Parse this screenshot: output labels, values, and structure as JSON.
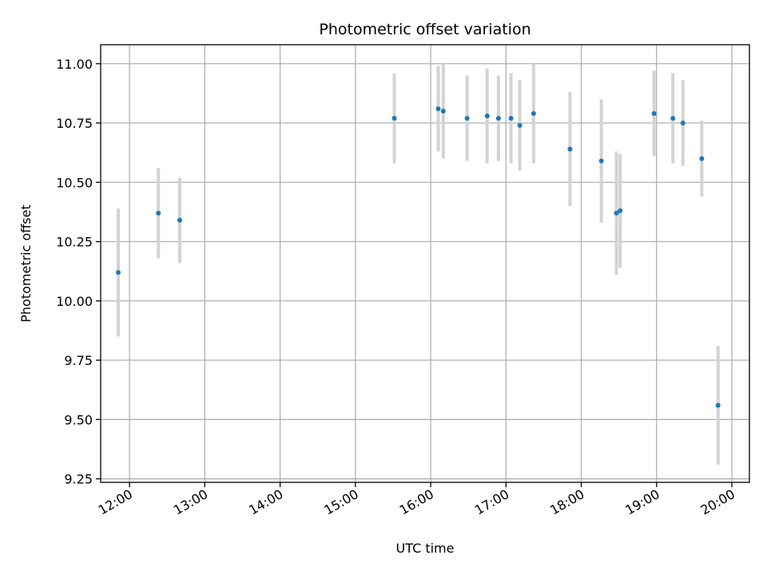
{
  "chart_data": {
    "type": "scatter",
    "title": "Photometric offset variation",
    "xlabel": "UTC time",
    "ylabel": "Photometric offset",
    "grid": true,
    "xlim": [
      "11:37",
      "20:14"
    ],
    "ylim": [
      9.235,
      11.08
    ],
    "x_ticks": [
      "12:00",
      "13:00",
      "14:00",
      "15:00",
      "16:00",
      "17:00",
      "18:00",
      "19:00",
      "20:00"
    ],
    "y_ticks": [
      "9.25",
      "9.50",
      "9.75",
      "10.00",
      "10.25",
      "10.50",
      "10.75",
      "11.00"
    ],
    "colors": {
      "marker": "#1f77b4",
      "errorbar": "#d3d3d3",
      "grid": "#b0b0b0"
    },
    "points": [
      {
        "time": "11:51",
        "y": 10.12,
        "err": 0.27
      },
      {
        "time": "12:23",
        "y": 10.37,
        "err": 0.19
      },
      {
        "time": "12:40",
        "y": 10.34,
        "err": 0.18
      },
      {
        "time": "15:31",
        "y": 10.77,
        "err": 0.19
      },
      {
        "time": "16:06",
        "y": 10.81,
        "err": 0.18
      },
      {
        "time": "16:10",
        "y": 10.8,
        "err": 0.2
      },
      {
        "time": "16:29",
        "y": 10.77,
        "err": 0.18
      },
      {
        "time": "16:45",
        "y": 10.78,
        "err": 0.2
      },
      {
        "time": "16:54",
        "y": 10.77,
        "err": 0.18
      },
      {
        "time": "17:04",
        "y": 10.77,
        "err": 0.19
      },
      {
        "time": "17:11",
        "y": 10.74,
        "err": 0.19
      },
      {
        "time": "17:22",
        "y": 10.79,
        "err": 0.21
      },
      {
        "time": "17:51",
        "y": 10.64,
        "err": 0.24
      },
      {
        "time": "18:16",
        "y": 10.59,
        "err": 0.26
      },
      {
        "time": "18:28",
        "y": 10.37,
        "err": 0.26
      },
      {
        "time": "18:31",
        "y": 10.38,
        "err": 0.24
      },
      {
        "time": "18:58",
        "y": 10.79,
        "err": 0.18
      },
      {
        "time": "19:13",
        "y": 10.77,
        "err": 0.19
      },
      {
        "time": "19:21",
        "y": 10.75,
        "err": 0.18
      },
      {
        "time": "19:36",
        "y": 10.6,
        "err": 0.16
      },
      {
        "time": "19:49",
        "y": 9.56,
        "err": 0.25
      }
    ]
  }
}
